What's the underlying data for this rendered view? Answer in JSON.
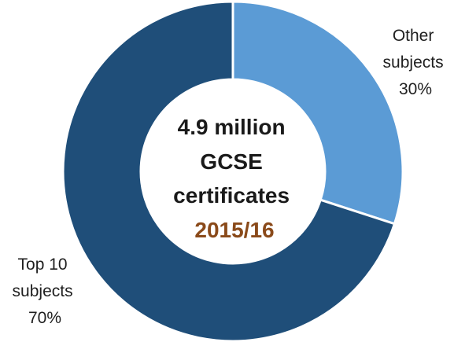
{
  "chart_data": {
    "type": "pie",
    "style": "donut",
    "categories": [
      "Other subjects",
      "Top 10 subjects"
    ],
    "values": [
      30,
      70
    ],
    "unit": "%",
    "colors": [
      "#5b9bd5",
      "#1f4e79"
    ],
    "slice_labels": [
      {
        "lines": [
          "Other",
          "subjects",
          "30%"
        ]
      },
      {
        "lines": [
          "Top 10",
          "subjects",
          "70%"
        ]
      }
    ],
    "center": {
      "lines": [
        "4.9 million",
        "GCSE",
        "certificates"
      ],
      "year": "2015/16",
      "year_color": "#8a4a1a"
    },
    "legend": "none",
    "grid": false
  }
}
